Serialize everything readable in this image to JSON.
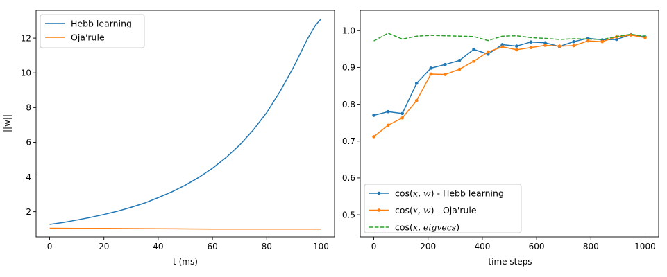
{
  "chart_data": [
    {
      "type": "line",
      "xlabel": "t (ms)",
      "ylabel": "||w||",
      "xlim": [
        -5,
        105
      ],
      "ylim": [
        0.55,
        13.6
      ],
      "xticks": [
        0,
        20,
        40,
        60,
        80,
        100
      ],
      "yticks": [
        2,
        4,
        6,
        8,
        10,
        12
      ],
      "grid": false,
      "legend": "top-left",
      "series": [
        {
          "name": "Hebb learning",
          "color": "#1f77b4",
          "x": [
            0,
            5,
            10,
            15,
            20,
            25,
            30,
            35,
            40,
            45,
            50,
            55,
            60,
            65,
            70,
            75,
            80,
            85,
            90,
            95,
            98,
            100
          ],
          "y": [
            1.27,
            1.38,
            1.52,
            1.67,
            1.84,
            2.03,
            2.25,
            2.5,
            2.81,
            3.14,
            3.53,
            3.98,
            4.5,
            5.12,
            5.84,
            6.7,
            7.71,
            8.95,
            10.36,
            11.95,
            12.75,
            13.1
          ]
        },
        {
          "name": "Oja'rule",
          "color": "#ff7f0e",
          "x": [
            0,
            10,
            20,
            30,
            40,
            50,
            60,
            70,
            80,
            90,
            100
          ],
          "y": [
            1.05,
            1.04,
            1.04,
            1.03,
            1.02,
            1.01,
            1.0,
            1.0,
            1.0,
            1.0,
            1.0
          ]
        }
      ]
    },
    {
      "type": "line",
      "xlabel": "time steps",
      "ylabel": "",
      "xlim": [
        -50,
        1050
      ],
      "ylim": [
        0.44,
        1.055
      ],
      "xticks": [
        0,
        200,
        400,
        600,
        800,
        1000
      ],
      "yticks": [
        0.5,
        0.6,
        0.7,
        0.8,
        0.9,
        1.0
      ],
      "ytick_labels": [
        "0.5",
        "0.6",
        "0.7",
        "0.8",
        "0.9",
        "1.0"
      ],
      "grid": false,
      "legend": "bottom-left",
      "series": [
        {
          "name_prefix": "cos(",
          "name_math": "x, w",
          "name_suffix": ") - Hebb learning",
          "color": "#1f77b4",
          "style": "solid",
          "marker": true,
          "x": [
            0,
            52.6,
            105.3,
            157.9,
            210.5,
            263.2,
            315.8,
            368.4,
            421.1,
            473.7,
            526.3,
            578.9,
            631.6,
            684.2,
            736.8,
            789.5,
            842.1,
            894.7,
            947.4,
            1000
          ],
          "y": [
            0.77,
            0.78,
            0.775,
            0.857,
            0.898,
            0.908,
            0.919,
            0.949,
            0.936,
            0.962,
            0.958,
            0.969,
            0.967,
            0.957,
            0.97,
            0.979,
            0.975,
            0.976,
            0.989,
            0.983
          ]
        },
        {
          "name_prefix": "cos(",
          "name_math": "x, w",
          "name_suffix": ") - Oja'rule",
          "color": "#ff7f0e",
          "style": "solid",
          "marker": true,
          "x": [
            0,
            52.6,
            105.3,
            157.9,
            210.5,
            263.2,
            315.8,
            368.4,
            421.1,
            473.7,
            526.3,
            578.9,
            631.6,
            684.2,
            736.8,
            789.5,
            842.1,
            894.7,
            947.4,
            1000
          ],
          "y": [
            0.712,
            0.743,
            0.763,
            0.81,
            0.882,
            0.881,
            0.895,
            0.917,
            0.942,
            0.956,
            0.948,
            0.954,
            0.96,
            0.958,
            0.959,
            0.972,
            0.97,
            0.983,
            0.988,
            0.981
          ]
        },
        {
          "name_prefix": "cos(",
          "name_math": "x, eigvecs",
          "name_suffix": ")",
          "color": "#2ca02c",
          "style": "dashed",
          "marker": false,
          "x": [
            0,
            52.6,
            105.3,
            157.9,
            210.5,
            263.2,
            315.8,
            368.4,
            421.1,
            473.7,
            526.3,
            578.9,
            631.6,
            684.2,
            736.8,
            789.5,
            842.1,
            894.7,
            947.4,
            1000
          ],
          "y": [
            0.972,
            0.993,
            0.977,
            0.985,
            0.987,
            0.986,
            0.985,
            0.984,
            0.973,
            0.985,
            0.986,
            0.981,
            0.979,
            0.976,
            0.978,
            0.977,
            0.976,
            0.984,
            0.99,
            0.985
          ]
        }
      ]
    }
  ]
}
